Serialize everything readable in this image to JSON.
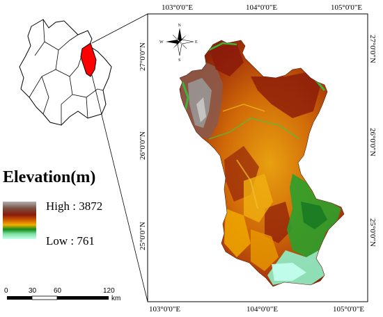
{
  "graticule": {
    "lon_labels": [
      "103°0'0\"E",
      "104°0'0\"E",
      "105°0'0\"E"
    ],
    "lat_labels": [
      "27°0'0\"N",
      "26°0'0\"N",
      "25°0'0\"N"
    ]
  },
  "north_arrow": {
    "n": "N",
    "s": "S",
    "e": "E",
    "w": "W"
  },
  "legend": {
    "title": "Elevation(m)",
    "high_label": "High : 3872",
    "low_label": "Low : 761",
    "high_value": 3872,
    "low_value": 761,
    "ramp_colors": [
      "#a8a8a8",
      "#7a4a3a",
      "#8b1a0a",
      "#c84a00",
      "#f0a000",
      "#1a8a2a",
      "#9ff5d0"
    ]
  },
  "scale_bar": {
    "ticks": [
      "0",
      "30",
      "60",
      "120"
    ],
    "unit": "km"
  },
  "colors": {
    "highlight_region": "#ff0000",
    "terrain_high": "#8c8c8c",
    "terrain_mid": "#9a2a0a",
    "terrain_low": "#e8a010",
    "terrain_lowest": "#2ca02c",
    "terrain_valley": "#a8f0d8"
  }
}
